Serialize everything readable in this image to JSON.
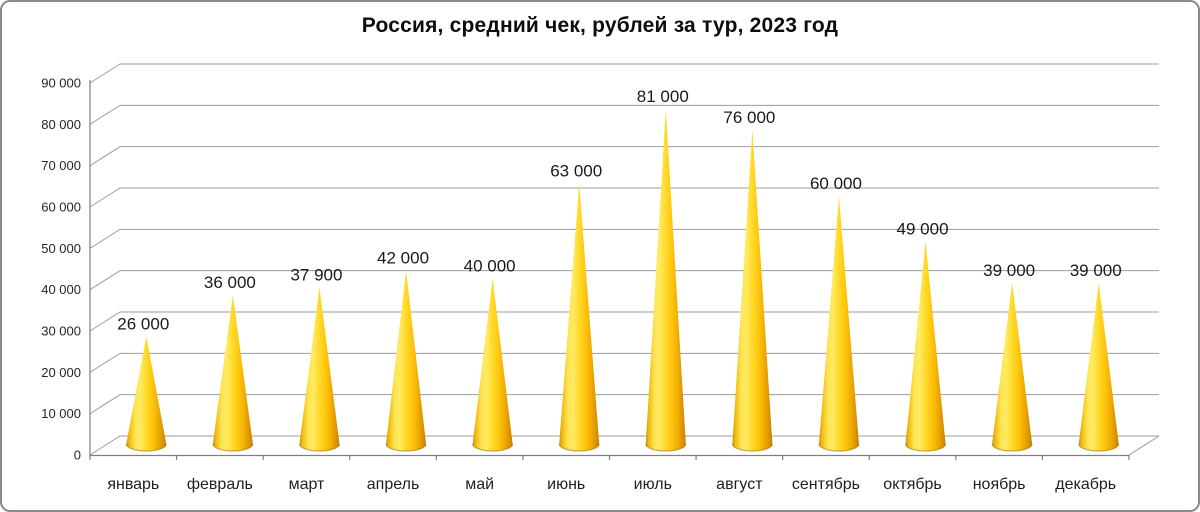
{
  "window": {
    "background": "#ffffff",
    "border_color": "#8a8a8a"
  },
  "chart_data": {
    "type": "bar",
    "variant": "3d-cone",
    "title": "Россия, средний чек, рублей за тур, 2023 год",
    "categories": [
      "январь",
      "февраль",
      "март",
      "апрель",
      "май",
      "июнь",
      "июль",
      "август",
      "сентябрь",
      "октябрь",
      "ноябрь",
      "декабрь"
    ],
    "values": [
      26000,
      36000,
      37900,
      42000,
      40000,
      63000,
      81000,
      76000,
      60000,
      49000,
      39000,
      39000
    ],
    "data_labels": [
      "26 000",
      "36 000",
      "37 900",
      "42 000",
      "40 000",
      "63 000",
      "81 000",
      "76 000",
      "60 000",
      "49 000",
      "39 000",
      "39 000"
    ],
    "xlabel": "",
    "ylabel": "",
    "y_axis": {
      "min": 0,
      "max": 90000,
      "step": 10000,
      "tick_labels": [
        "0",
        "10 000",
        "20 000",
        "30 000",
        "40 000",
        "50 000",
        "60 000",
        "70 000",
        "80 000",
        "90 000"
      ]
    },
    "grid": true,
    "legend": "none",
    "colors": {
      "gridline": "#9d9d9d",
      "axis": "#7f7f7f",
      "title_text": "#0d0d0d",
      "label_text": "#262626",
      "cone_rim": "#92610280",
      "cone_gradient": [
        {
          "o": 0.0,
          "c": "#ce8d05"
        },
        {
          "o": 0.07,
          "c": "#efb90f"
        },
        {
          "o": 0.22,
          "c": "#ffe452"
        },
        {
          "o": 0.35,
          "c": "#ffea63"
        },
        {
          "o": 0.5,
          "c": "#ffd929"
        },
        {
          "o": 0.65,
          "c": "#ffc60e"
        },
        {
          "o": 0.8,
          "c": "#f0ac02"
        },
        {
          "o": 0.92,
          "c": "#db9300"
        },
        {
          "o": 1.0,
          "c": "#c27f04"
        }
      ]
    }
  }
}
